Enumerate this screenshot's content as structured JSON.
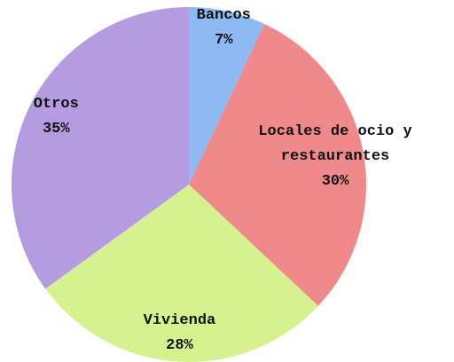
{
  "chart_data": {
    "type": "pie",
    "categories": [
      "Bancos",
      "Locales de ocio y restaurantes",
      "Vivienda",
      "Otros"
    ],
    "values": [
      7,
      30,
      28,
      35
    ],
    "value_labels": [
      "7%",
      "30%",
      "28%",
      "35%"
    ],
    "colors": [
      "#8fb9f2",
      "#f08a8a",
      "#d6f28f",
      "#b59be0"
    ]
  }
}
